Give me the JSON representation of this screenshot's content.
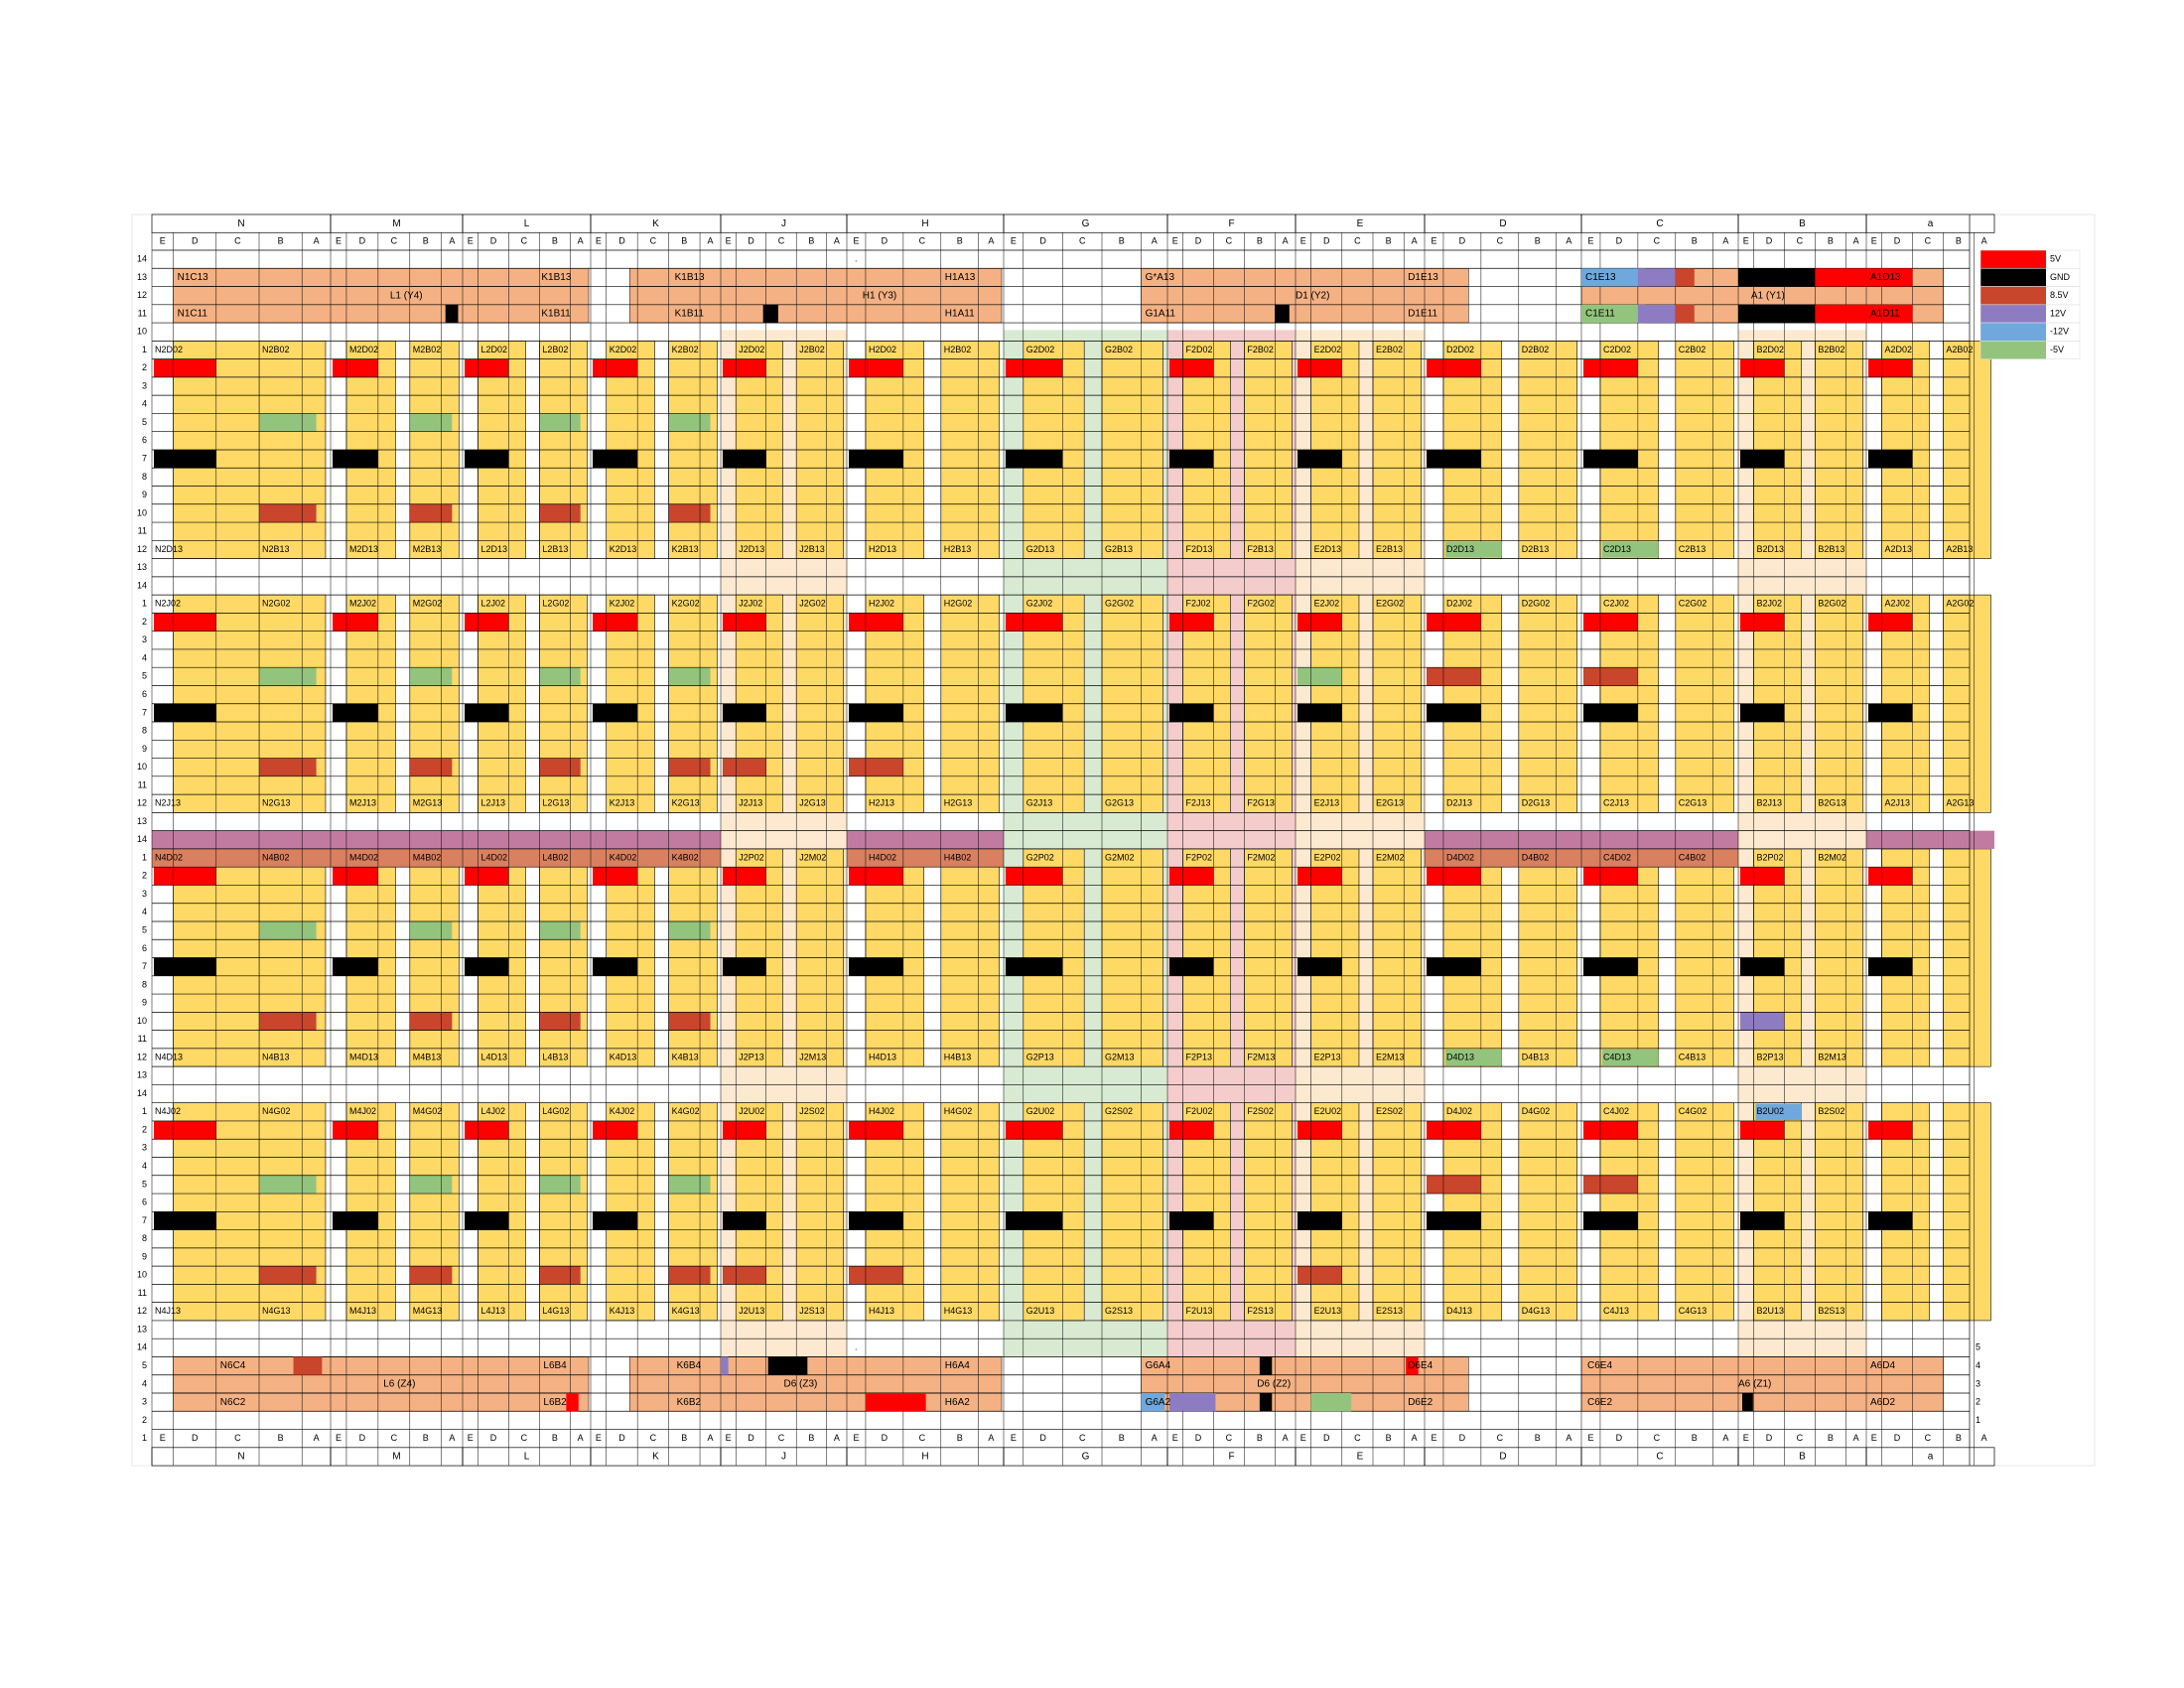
{
  "colors": {
    "card": "#ffd966",
    "bus": "#f4b183",
    "v5": "#ff0000",
    "gnd": "#000000",
    "v85": "#c9452c",
    "v12": "#8e7cc3",
    "vneg12": "#6fa8dc",
    "vneg5": "#93c47d",
    "cream": "#fde9d0",
    "mint": "#d9ead3",
    "pink": "#f4cccc",
    "mauve": "#c27ba0",
    "terracotta": "#d98060"
  },
  "legend": [
    {
      "label": "5V",
      "color": "#ff0000"
    },
    {
      "label": "GND",
      "color": "#000000"
    },
    {
      "label": "8.5V",
      "color": "#c9452c"
    },
    {
      "label": "12V",
      "color": "#8e7cc3"
    },
    {
      "label": "-12V",
      "color": "#6fa8dc"
    },
    {
      "label": "-5V",
      "color": "#93c47d"
    }
  ],
  "groups": [
    {
      "label": "N",
      "subs": [
        "E",
        "D",
        "C",
        "B",
        "A"
      ]
    },
    {
      "label": "M",
      "subs": [
        "E",
        "D",
        "C",
        "B",
        "A"
      ]
    },
    {
      "label": "L",
      "subs": [
        "E",
        "D",
        "C",
        "B",
        "A"
      ]
    },
    {
      "label": "K",
      "subs": [
        "E",
        "D",
        "C",
        "B",
        "A"
      ]
    },
    {
      "label": "J",
      "subs": [
        "E",
        "D",
        "C",
        "B",
        "A"
      ]
    },
    {
      "label": "H",
      "subs": [
        "E",
        "D",
        "C",
        "B",
        "A"
      ]
    },
    {
      "label": "G",
      "subs": [
        "E",
        "D",
        "C",
        "B",
        "A"
      ]
    },
    {
      "label": "F",
      "subs": [
        "E",
        "D",
        "C",
        "B",
        "A"
      ]
    },
    {
      "label": "E",
      "subs": [
        "E",
        "D",
        "C",
        "B",
        "A"
      ]
    },
    {
      "label": "D",
      "subs": [
        "E",
        "D",
        "C",
        "B",
        "A"
      ]
    },
    {
      "label": "C",
      "subs": [
        "E",
        "D",
        "C",
        "B",
        "A"
      ]
    },
    {
      "label": "B",
      "subs": [
        "E",
        "D",
        "C",
        "B",
        "A"
      ]
    },
    {
      "label": "a",
      "subs": [
        "E",
        "D",
        "C",
        "B",
        "A"
      ]
    }
  ],
  "top_rows": [
    "14",
    "13",
    "12",
    "11",
    "10"
  ],
  "bottom_rows": [
    "5",
    "4",
    "3",
    "2",
    "1"
  ],
  "right_rows_bottom": [
    "5",
    "4",
    "3",
    "2",
    "1"
  ],
  "block_rows": [
    "1",
    "2",
    "3",
    "4",
    "5",
    "6",
    "7",
    "8",
    "9",
    "10",
    "11",
    "12",
    "13",
    "14"
  ],
  "top_bus": {
    "row13": [
      "N1C13",
      "K1B13",
      "K1B13",
      "H1A13",
      "G*A13",
      "D1E13",
      "C1E13",
      "A1D13"
    ],
    "row12": [
      "L1 (Y4)",
      "H1 (Y3)",
      "D1 (Y2)",
      "A1 (Y1)"
    ],
    "row11": [
      "N1C11",
      "K1B11",
      "K1B11",
      "H1A11",
      "G1A11",
      "D1E11",
      "C1E11",
      "A1D11"
    ]
  },
  "bottom_bus": {
    "row4": [
      "N6C4",
      "L6B4",
      "K6B4",
      "H6A4",
      "G6A4",
      "D6E4",
      "C6E4",
      "A6D4"
    ],
    "row3": [
      "L6 (Z4)",
      "D6 (Z3)",
      "D6 (Z2)",
      "A6 (Z1)"
    ],
    "row2": [
      "N6C2",
      "L6B2",
      "K6B2",
      "H6A2",
      "G6A2",
      "D6E2",
      "C6E2",
      "A6D2"
    ]
  },
  "blocks": [
    {
      "top": [
        "N2D02",
        "N2B02",
        "M2D02",
        "M2B02",
        "L2D02",
        "L2B02",
        "K2D02",
        "K2B02",
        "J2D02",
        "J2B02",
        "H2D02",
        "H2B02",
        "G2D02",
        "G2B02",
        "F2D02",
        "F2B02",
        "E2D02",
        "E2B02",
        "D2D02",
        "D2B02",
        "C2D02",
        "C2B02",
        "B2D02",
        "B2B02",
        "A2D02",
        "A2B02"
      ],
      "bot": [
        "N2D13",
        "N2B13",
        "M2D13",
        "M2B13",
        "L2D13",
        "L2B13",
        "K2D13",
        "K2B13",
        "J2D13",
        "J2B13",
        "H2D13",
        "H2B13",
        "G2D13",
        "G2B13",
        "F2D13",
        "F2B13",
        "E2D13",
        "E2B13",
        "D2D13",
        "D2B13",
        "C2D13",
        "C2B13",
        "B2D13",
        "B2B13",
        "A2D13",
        "A2B13"
      ]
    },
    {
      "top": [
        "N2J02",
        "N2G02",
        "M2J02",
        "M2G02",
        "L2J02",
        "L2G02",
        "K2J02",
        "K2G02",
        "J2J02",
        "J2G02",
        "H2J02",
        "H2G02",
        "G2J02",
        "G2G02",
        "F2J02",
        "F2G02",
        "E2J02",
        "E2G02",
        "D2J02",
        "D2G02",
        "C2J02",
        "C2G02",
        "B2J02",
        "B2G02",
        "A2J02",
        "A2G02"
      ],
      "bot": [
        "N2J13",
        "N2G13",
        "M2J13",
        "M2G13",
        "L2J13",
        "L2G13",
        "K2J13",
        "K2G13",
        "J2J13",
        "J2G13",
        "H2J13",
        "H2G13",
        "G2J13",
        "G2G13",
        "F2J13",
        "F2G13",
        "E2J13",
        "E2G13",
        "D2J13",
        "D2G13",
        "C2J13",
        "C2G13",
        "B2J13",
        "B2G13",
        "A2J13",
        "A2G13"
      ]
    },
    {
      "top": [
        "N4D02",
        "N4B02",
        "M4D02",
        "M4B02",
        "L4D02",
        "L4B02",
        "K4D02",
        "K4B02",
        "J2P02",
        "J2M02",
        "H4D02",
        "H4B02",
        "G2P02",
        "G2M02",
        "F2P02",
        "F2M02",
        "E2P02",
        "E2M02",
        "D4D02",
        "D4B02",
        "C4D02",
        "C4B02",
        "B2P02",
        "B2M02",
        "",
        ""
      ],
      "bot": [
        "N4D13",
        "N4B13",
        "M4D13",
        "M4B13",
        "L4D13",
        "L4B13",
        "K4D13",
        "K4B13",
        "J2P13",
        "J2M13",
        "H4D13",
        "H4B13",
        "G2P13",
        "G2M13",
        "F2P13",
        "F2M13",
        "E2P13",
        "E2M13",
        "D4D13",
        "D4B13",
        "C4D13",
        "C4B13",
        "B2P13",
        "B2M13",
        "",
        ""
      ]
    },
    {
      "top": [
        "N4J02",
        "N4G02",
        "M4J02",
        "M4G02",
        "L4J02",
        "L4G02",
        "K4J02",
        "K4G02",
        "J2U02",
        "J2S02",
        "H4J02",
        "H4G02",
        "G2U02",
        "G2S02",
        "F2U02",
        "F2S02",
        "E2U02",
        "E2S02",
        "D4J02",
        "D4G02",
        "C4J02",
        "C4G02",
        "B2U02",
        "B2S02",
        "",
        ""
      ],
      "bot": [
        "N4J13",
        "N4G13",
        "M4J13",
        "M4G13",
        "L4J13",
        "L4G13",
        "K4J13",
        "K4G13",
        "J2U13",
        "J2S13",
        "H4J13",
        "H4G13",
        "G2U13",
        "G2S13",
        "F2U13",
        "F2S13",
        "E2U13",
        "E2S13",
        "D4J13",
        "D4G13",
        "C4J13",
        "C4G13",
        "B2U13",
        "B2S13",
        "",
        ""
      ]
    }
  ]
}
